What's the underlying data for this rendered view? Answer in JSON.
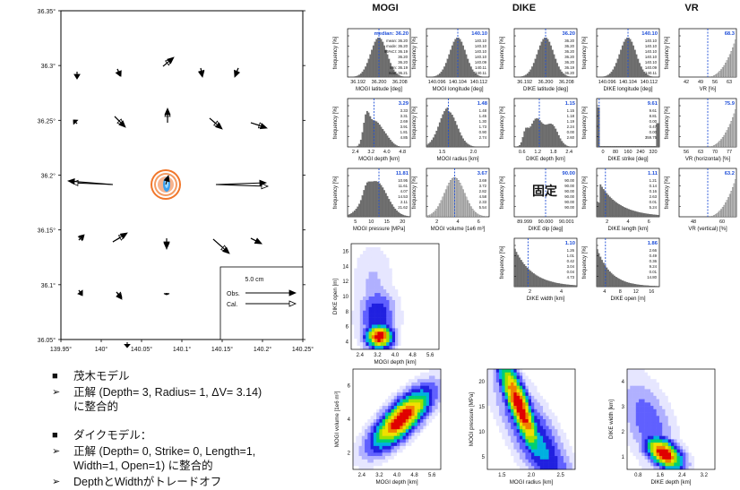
{
  "column_heads": {
    "mogi": "MOGI",
    "dike": "DIKE",
    "vr": "VR"
  },
  "map": {
    "y_ticks": [
      "36.35°",
      "36.3°",
      "36.25°",
      "36.2°",
      "36.15°",
      "36.1°",
      "36.05°"
    ],
    "x_ticks": [
      "139.95°",
      "140°",
      "140.05°",
      "140.1°",
      "140.15°",
      "140.2°",
      "140.25°"
    ],
    "legend": {
      "scale": "5.0 cm",
      "obs": "Obs.",
      "cal": "Cal."
    },
    "colors": {
      "obs": "#000000",
      "cal": "#ffffff",
      "ring_outer": "#f07020",
      "ring_inner": "#3aa0f0"
    }
  },
  "fixed_label": "固定",
  "bullets": [
    {
      "mark": "■",
      "text": "茂木モデル"
    },
    {
      "mark": "➢",
      "text": "正解 (Depth= 3, Radius= 1, ΔV= 3.14)"
    },
    {
      "mark": "",
      "text": "に整合的"
    },
    {
      "mark": "■",
      "text": "ダイクモデル："
    },
    {
      "mark": "➢",
      "text": "正解 (Depth= 0, Strike= 0, Length=1,"
    },
    {
      "mark": "",
      "text": "Width=1, Open=1) に整合的"
    },
    {
      "mark": "➢",
      "text": "DepthとWidthがトレードオフ"
    }
  ],
  "chart_data": [
    {
      "type": "bar",
      "xlabel": "MOGI latitude [deg]",
      "ylabel": "frequency [%]",
      "badge": "median: 36.20",
      "ticks": [
        "36.192",
        "36.200",
        "36.208"
      ],
      "stats": [
        "mean: 36.20",
        "mode: 36.20",
        "95%CI: 36.19",
        "36.20",
        "36.20",
        "min: 36.19",
        "max: 36.21"
      ]
    },
    {
      "type": "bar",
      "xlabel": "MOGI longitude [deg]",
      "ylabel": "frequency [%]",
      "badge": "140.10",
      "ticks": [
        "140.096",
        "140.104",
        "140.112"
      ],
      "stats": [
        "140.10",
        "140.10",
        "140.10",
        "140.10",
        "140.09",
        "140.11",
        "140.11"
      ]
    },
    {
      "type": "bar",
      "xlabel": "DIKE latitude [deg]",
      "ylabel": "frequency [%]",
      "badge": "36.20",
      "ticks": [
        "36.192",
        "36.200",
        "36.208"
      ],
      "stats": [
        "36.20",
        "36.20",
        "36.20",
        "36.20",
        "36.20",
        "36.19",
        "36.20"
      ]
    },
    {
      "type": "bar",
      "xlabel": "DIKE longitude [deg]",
      "ylabel": "frequency [%]",
      "badge": "140.10",
      "ticks": [
        "140.096",
        "140.104",
        "140.112"
      ],
      "stats": [
        "140.10",
        "140.10",
        "140.10",
        "140.10",
        "140.10",
        "140.09",
        "140.11"
      ]
    },
    {
      "type": "bar",
      "xlabel": "VR [%]",
      "ylabel": "frequency [%]",
      "badge": "68.3",
      "ticks": [
        "42",
        "49",
        "56",
        "63"
      ],
      "stats": []
    },
    {
      "type": "bar",
      "xlabel": "MOGI depth [km]",
      "ylabel": "frequency [%]",
      "badge": "3.29",
      "ticks": [
        "2.4",
        "3.2",
        "4.0",
        "4.8"
      ],
      "stats": [
        "3.33",
        "3.31",
        "2.69",
        "3.91",
        "1.81",
        "4.85"
      ]
    },
    {
      "type": "bar",
      "xlabel": "MOGI radius [km]",
      "ylabel": "frequency [%]",
      "badge": "1.48",
      "ticks": [
        "1.5",
        "2.0"
      ],
      "stats": [
        "1.48",
        "1.45",
        "1.30",
        "1.73",
        "0.90",
        "2.74"
      ]
    },
    {
      "type": "bar",
      "xlabel": "DIKE depth [km]",
      "ylabel": "frequency [%]",
      "badge": "1.15",
      "ticks": [
        "0.6",
        "1.2",
        "1.8",
        "2.4"
      ],
      "stats": [
        "1.15",
        "1.18",
        "1.19",
        "2.24",
        "0.00",
        "2.60"
      ]
    },
    {
      "type": "bar",
      "xlabel": "DIKE strike [deg]",
      "ylabel": "frequency [%]",
      "badge": "9.61",
      "ticks": [
        "0",
        "80",
        "160",
        "240",
        "320"
      ],
      "stats": [
        "9.61",
        "8.81",
        "0.00",
        "0.47",
        "0.00",
        "359.75"
      ]
    },
    {
      "type": "bar",
      "xlabel": "VR (horizontal) [%]",
      "ylabel": "frequency [%]",
      "badge": "75.9",
      "ticks": [
        "56",
        "63",
        "70",
        "77"
      ],
      "stats": []
    },
    {
      "type": "bar",
      "xlabel": "MOGI pressure [MPa]",
      "ylabel": "frequency [%]",
      "badge": "11.81",
      "ticks": [
        "5",
        "10",
        "15",
        "20"
      ],
      "stats": [
        "10.95",
        "11.61",
        "4.07",
        "14.53",
        "2.11",
        "21.62"
      ]
    },
    {
      "type": "bar",
      "xlabel": "MOGI volume [1e6 m³]",
      "ylabel": "frequency [%]",
      "badge": "3.67",
      "ticks": [
        "2",
        "4",
        "6"
      ],
      "stats": [
        "3.69",
        "3.72",
        "2.82",
        "4.58",
        "2.33",
        "5.54"
      ]
    },
    {
      "type": "bar",
      "xlabel": "DIKE dip [deg]",
      "ylabel": "frequency [%]",
      "badge": "90.00",
      "ticks": [
        "89.999",
        "90.000",
        "90.001"
      ],
      "stats": [
        "90.00",
        "90.00",
        "90.00",
        "90.00",
        "90.00",
        "90.00"
      ]
    },
    {
      "type": "bar",
      "xlabel": "DIKE length [km]",
      "ylabel": "frequency [%]",
      "badge": "1.11",
      "ticks": [
        "2",
        "4",
        "6"
      ],
      "stats": [
        "1.21",
        "0.14",
        "0.16",
        "2.63",
        "0.01",
        "5.24"
      ]
    },
    {
      "type": "bar",
      "xlabel": "VR (vertical) [%]",
      "ylabel": "frequency [%]",
      "badge": "63.2",
      "ticks": [
        "48",
        "60"
      ],
      "stats": []
    },
    {
      "type": "bar",
      "xlabel": "DIKE width [km]",
      "ylabel": "frequency [%]",
      "badge": "1.10",
      "ticks": [
        "2",
        "4"
      ],
      "stats": [
        "1.26",
        "1.01",
        "0.42",
        "3.04",
        "0.04",
        "4.73"
      ]
    },
    {
      "type": "bar",
      "xlabel": "DIKE open [m]",
      "ylabel": "frequency [%]",
      "badge": "1.86",
      "ticks": [
        "4",
        "8",
        "12",
        "16"
      ],
      "stats": [
        "2.66",
        "0.49",
        "0.36",
        "9.24",
        "0.01",
        "14.80"
      ]
    },
    {
      "type": "heatmap",
      "xlabel": "MOGI depth [km]",
      "ylabel": "DIKE open [m]",
      "x_ticks": [
        "2.4",
        "3.2",
        "4.0",
        "4.8",
        "5.6"
      ],
      "y_ticks": [
        "4",
        "6",
        "8",
        "10",
        "12",
        "14",
        "16"
      ]
    },
    {
      "type": "heatmap",
      "xlabel": "MOGI depth [km]",
      "ylabel": "MOGI volume [1e6 m³]",
      "x_ticks": [
        "2.4",
        "3.2",
        "4.0",
        "4.8",
        "5.6"
      ],
      "y_ticks": [
        "2",
        "4",
        "6"
      ]
    },
    {
      "type": "heatmap",
      "xlabel": "MOGI radius [km]",
      "ylabel": "MOGI pressure [MPa]",
      "x_ticks": [
        "1.5",
        "2.0",
        "2.5"
      ],
      "y_ticks": [
        "5",
        "10",
        "15",
        "20"
      ]
    },
    {
      "type": "heatmap",
      "xlabel": "DIKE depth [km]",
      "ylabel": "DIKE width [km]",
      "x_ticks": [
        "0.8",
        "1.6",
        "2.4",
        "3.2"
      ],
      "y_ticks": [
        "1",
        "2",
        "3",
        "4"
      ]
    }
  ]
}
